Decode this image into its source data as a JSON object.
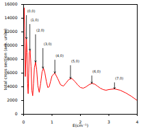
{
  "chart_data": {
    "type": "line",
    "x_label": "E(cm⁻¹)",
    "y_label": "total cross section (arb. units)",
    "xlim": [
      0,
      4
    ],
    "xticks": [
      0,
      1,
      2,
      3,
      4
    ],
    "ylim": [
      0,
      16000
    ],
    "yticks": [
      0,
      2000,
      4000,
      6000,
      8000,
      10000,
      12000,
      14000,
      16000
    ],
    "series": [
      {
        "name": "total cross section",
        "color": "#ff0000",
        "x": [
          0,
          0.02,
          0.04,
          0.06,
          0.08,
          0.1,
          0.12,
          0.14,
          0.16,
          0.18,
          0.2,
          0.23,
          0.26,
          0.29,
          0.32,
          0.35,
          0.38,
          0.42,
          0.46,
          0.5,
          0.55,
          0.6,
          0.65,
          0.7,
          0.75,
          0.8,
          0.85,
          0.9,
          0.95,
          1.0,
          1.1,
          1.2,
          1.3,
          1.4,
          1.5,
          1.6,
          1.7,
          1.8,
          1.9,
          2.0,
          2.1,
          2.2,
          2.3,
          2.4,
          2.5,
          2.6,
          2.7,
          2.8,
          2.9,
          3.0,
          3.2,
          3.4,
          3.6,
          3.8,
          4.0
        ],
        "values": [
          13000,
          15500,
          12000,
          5500,
          8000,
          11000,
          9000,
          4500,
          3000,
          6000,
          9000,
          9300,
          7000,
          3500,
          2700,
          4500,
          6800,
          7600,
          6500,
          4200,
          3200,
          4500,
          6200,
          6700,
          6000,
          4800,
          3900,
          4000,
          4800,
          5600,
          6000,
          5200,
          4300,
          4100,
          4600,
          5100,
          5200,
          4800,
          4300,
          3900,
          3800,
          4000,
          4300,
          4500,
          4400,
          4100,
          3800,
          3600,
          3500,
          3600,
          3700,
          3500,
          3100,
          2600,
          2000
        ]
      }
    ],
    "annotations": [
      {
        "text": "(0,0)",
        "x": 0.1,
        "y": 11000,
        "text_y": 14800
      },
      {
        "text": "(1,0)",
        "x": 0.22,
        "y": 9300,
        "text_y": 13500
      },
      {
        "text": "(2,0)",
        "x": 0.42,
        "y": 7600,
        "text_y": 12000
      },
      {
        "text": "(3,0)",
        "x": 0.68,
        "y": 6700,
        "text_y": 10000
      },
      {
        "text": "(4,0)",
        "x": 1.1,
        "y": 6000,
        "text_y": 8300
      },
      {
        "text": "(5,0)",
        "x": 1.65,
        "y": 5200,
        "text_y": 7500
      },
      {
        "text": "(6,0)",
        "x": 2.4,
        "y": 4500,
        "text_y": 6000
      },
      {
        "text": "(7,0)",
        "x": 3.2,
        "y": 3700,
        "text_y": 5000
      }
    ]
  }
}
